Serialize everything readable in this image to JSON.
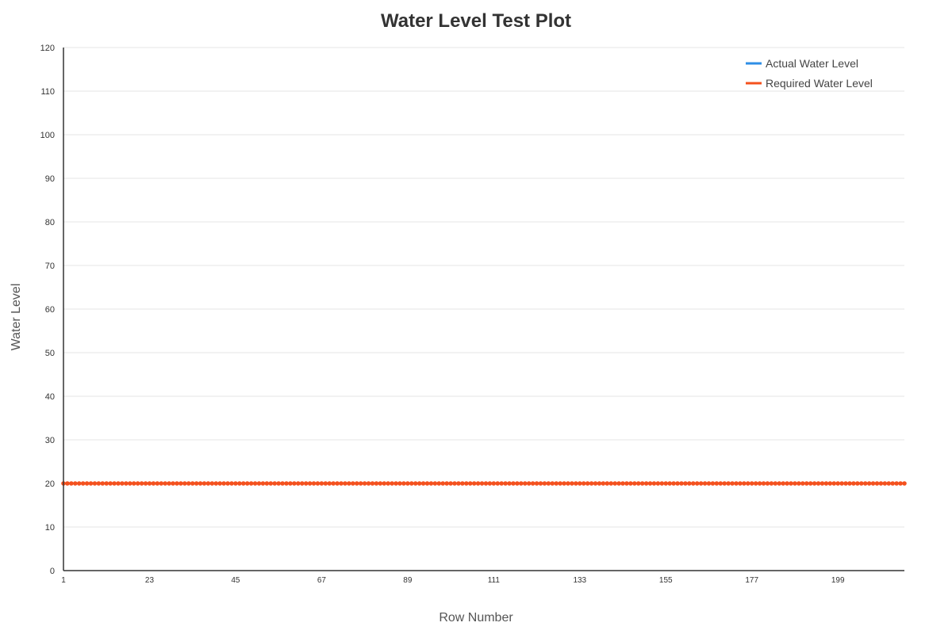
{
  "chart_data": {
    "type": "line",
    "title": "Water Level Test Plot",
    "xlabel": "Row Number",
    "ylabel": "Water Level",
    "x_start": 1,
    "x_end": 216,
    "x_ticks": [
      1,
      23,
      45,
      67,
      89,
      111,
      133,
      155,
      177,
      199
    ],
    "ylim": [
      0,
      120
    ],
    "y_ticks": [
      0,
      10,
      20,
      30,
      40,
      50,
      60,
      70,
      80,
      90,
      100,
      110,
      120
    ],
    "grid": true,
    "legend_position": "top-right",
    "series": [
      {
        "name": "Actual Water Level",
        "color": "#2e8ee6",
        "constant_value": 20,
        "markers": false
      },
      {
        "name": "Required Water Level",
        "color": "#f4511e",
        "constant_value": 20,
        "markers": true
      }
    ]
  }
}
